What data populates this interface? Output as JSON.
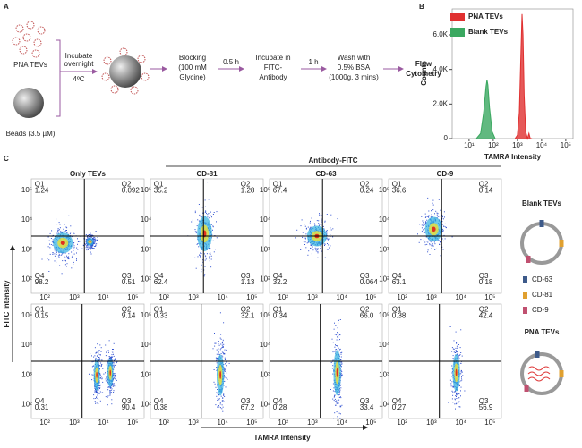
{
  "panel_labels": [
    "A",
    "B",
    "C"
  ],
  "panel_a": {
    "pna_tevs": "PNA TEVs",
    "beads": "Beads (3.5 µM)",
    "incubate": [
      "Incubate",
      "overnight"
    ],
    "temperature": "4ºC",
    "blocking": [
      "Blocking",
      "(100 mM",
      "Glycine)"
    ],
    "step1_time": "0.5 h",
    "antibody": [
      "Incubate in",
      "FITC-",
      "Antibody"
    ],
    "step2_time": "1 h",
    "wash": [
      "Wash with",
      "0.5% BSA",
      "(1000g, 3 mins)"
    ],
    "readout": [
      "Flow",
      "Cytometry"
    ]
  },
  "chart_data": {
    "type": "area",
    "x_label": "TAMRA Intensity",
    "y_label": "Counts",
    "xscale": "log",
    "xlim": [
      2,
      200000
    ],
    "ylim": [
      0,
      7500
    ],
    "xticks": [
      {
        "value": 10,
        "label": "10¹"
      },
      {
        "value": 100,
        "label": "10²"
      },
      {
        "value": 1000,
        "label": "10³"
      },
      {
        "value": 10000,
        "label": "10⁴"
      },
      {
        "value": 100000,
        "label": "10⁵"
      }
    ],
    "yticks": [
      0,
      {
        "value": 2000,
        "label": "2.0K"
      },
      {
        "value": 4000,
        "label": "4.0K"
      },
      {
        "value": 6000,
        "label": "6.0K"
      }
    ],
    "legend": "upper-left",
    "series": [
      {
        "name": "PNA TEVs",
        "color": "#e03030",
        "x": [
          800,
          1000,
          1200,
          1400,
          1550,
          1700,
          1900,
          2200,
          2600,
          3000,
          3400,
          4000
        ],
        "values": [
          0,
          200,
          1500,
          5000,
          7200,
          6000,
          2500,
          400,
          0,
          300,
          0,
          0
        ]
      },
      {
        "name": "Blank TEVs",
        "color": "#3aa860",
        "x": [
          20,
          30,
          40,
          50,
          55,
          60,
          70,
          90,
          120
        ],
        "values": [
          0,
          300,
          1500,
          3000,
          3400,
          3100,
          1800,
          400,
          0
        ]
      }
    ]
  },
  "panel_c": {
    "group_title": "Antibody-FITC",
    "columns": [
      "Only TEVs",
      "CD-81",
      "CD-63",
      "CD-9"
    ],
    "column_colors": [
      "#111111",
      "#d4a020",
      "#3d4a8a",
      "#b0607a"
    ],
    "y_axis_label": "FITC Intensity",
    "x_axis_label": "TAMRA Intensity",
    "quadrant_names": [
      "Q1",
      "Q2",
      "Q3",
      "Q4"
    ],
    "axis_ticks": [
      "10²",
      "10³",
      "10⁴",
      "10⁵"
    ],
    "rows": [
      [
        [
          "1.24",
          "0.092",
          "0.51",
          "98.2"
        ],
        [
          "35.2",
          "1.28",
          "1.13",
          "62.4"
        ],
        [
          "67.4",
          "0.24",
          "0.064",
          "32.2"
        ],
        [
          "36.6",
          "0.14",
          "0.18",
          "63.1"
        ]
      ],
      [
        [
          "0.15",
          "9.14",
          "90.4",
          "0.31"
        ],
        [
          "0.33",
          "32.1",
          "67.2",
          "0.38"
        ],
        [
          "0.34",
          "66.0",
          "33.4",
          "0.28"
        ],
        [
          "0.38",
          "42.4",
          "56.9",
          "0.27"
        ]
      ]
    ],
    "legend": {
      "blank_title": "Blank TEVs",
      "markers": [
        "CD-63",
        "CD-81",
        "CD-9"
      ],
      "marker_colors": [
        "#3d5a8a",
        "#e0a030",
        "#c05070"
      ],
      "pna_title": "PNA TEVs"
    }
  }
}
